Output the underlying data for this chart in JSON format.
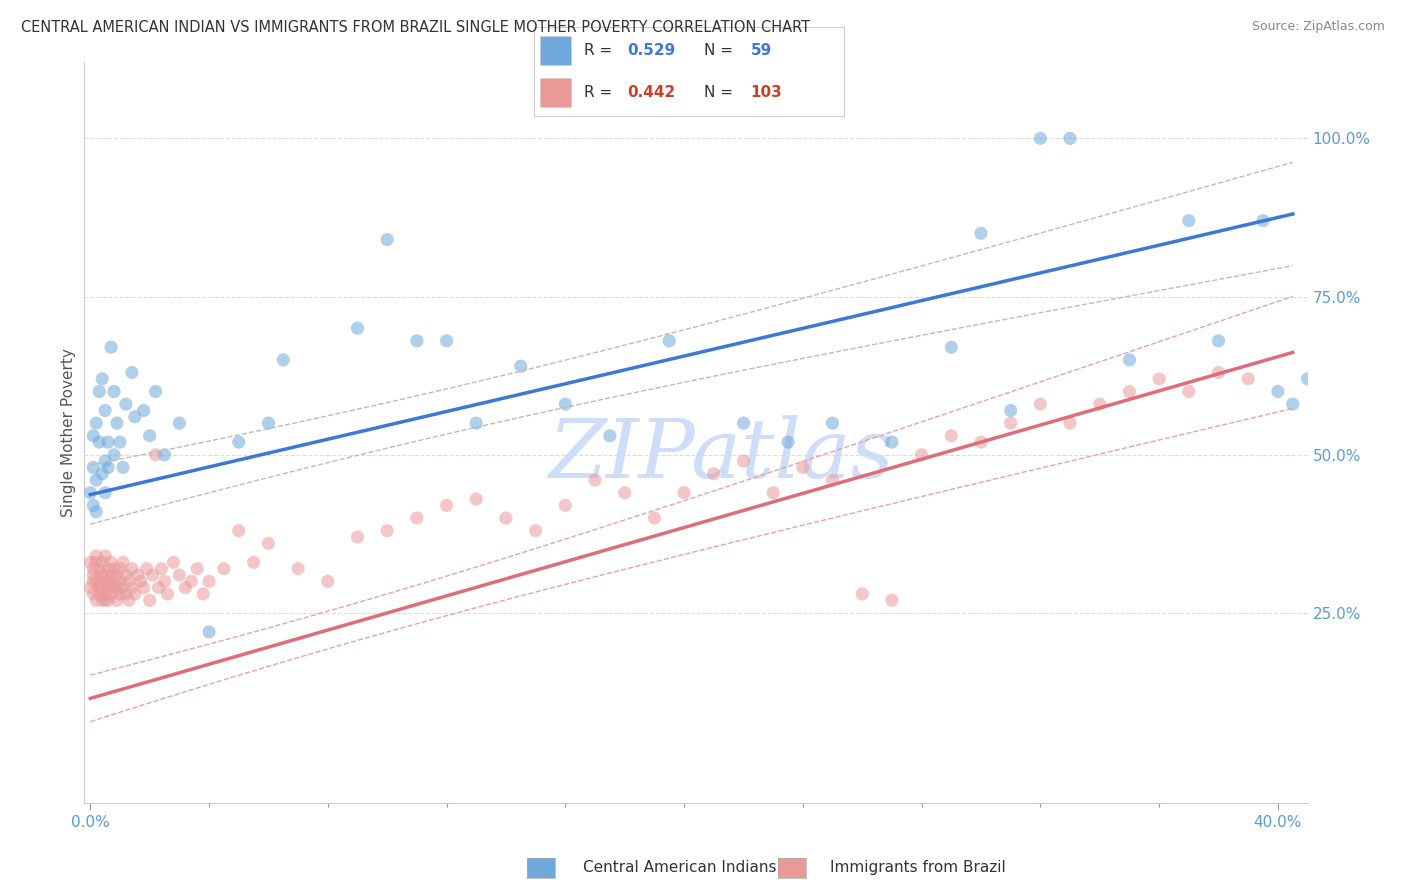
{
  "title": "CENTRAL AMERICAN INDIAN VS IMMIGRANTS FROM BRAZIL SINGLE MOTHER POVERTY CORRELATION CHART",
  "source": "Source: ZipAtlas.com",
  "ylabel": "Single Mother Poverty",
  "xlim": [
    -0.002,
    0.41
  ],
  "ylim": [
    -0.05,
    1.12
  ],
  "xticks": [
    0.0,
    0.4
  ],
  "xtick_labels": [
    "0.0%",
    "40.0%"
  ],
  "xticks_minor": [
    0.04,
    0.08,
    0.12,
    0.16,
    0.2,
    0.24,
    0.28,
    0.32,
    0.36
  ],
  "yticks": [
    0.25,
    0.5,
    0.75,
    1.0
  ],
  "ytick_labels": [
    "25.0%",
    "50.0%",
    "75.0%",
    "100.0%"
  ],
  "blue_R": 0.529,
  "blue_N": 59,
  "pink_R": 0.442,
  "pink_N": 103,
  "blue_color": "#6fa8dc",
  "pink_color": "#ea9999",
  "line_blue": "#3c78d8",
  "line_pink": "#e06c7a",
  "conf_color": "#e8a0a8",
  "legend_label_blue": "Central American Indians",
  "legend_label_pink": "Immigrants from Brazil",
  "watermark": "ZIPatlas",
  "watermark_color": "#c9daf8",
  "blue_x": [
    0.0,
    0.001,
    0.001,
    0.001,
    0.002,
    0.002,
    0.002,
    0.003,
    0.003,
    0.004,
    0.004,
    0.005,
    0.005,
    0.005,
    0.006,
    0.006,
    0.007,
    0.008,
    0.008,
    0.009,
    0.01,
    0.011,
    0.012,
    0.014,
    0.015,
    0.018,
    0.02,
    0.022,
    0.025,
    0.03,
    0.04,
    0.05,
    0.06,
    0.065,
    0.09,
    0.1,
    0.11,
    0.12,
    0.13,
    0.145,
    0.16,
    0.175,
    0.195,
    0.22,
    0.235,
    0.25,
    0.27,
    0.29,
    0.3,
    0.31,
    0.32,
    0.33,
    0.35,
    0.37,
    0.38,
    0.395,
    0.4,
    0.405,
    0.41
  ],
  "blue_y": [
    0.44,
    0.48,
    0.42,
    0.53,
    0.46,
    0.55,
    0.41,
    0.52,
    0.6,
    0.47,
    0.62,
    0.49,
    0.57,
    0.44,
    0.52,
    0.48,
    0.67,
    0.6,
    0.5,
    0.55,
    0.52,
    0.48,
    0.58,
    0.63,
    0.56,
    0.57,
    0.53,
    0.6,
    0.5,
    0.55,
    0.22,
    0.52,
    0.55,
    0.65,
    0.7,
    0.84,
    0.68,
    0.68,
    0.55,
    0.64,
    0.58,
    0.53,
    0.68,
    0.55,
    0.52,
    0.55,
    0.52,
    0.67,
    0.85,
    0.57,
    1.0,
    1.0,
    0.65,
    0.87,
    0.68,
    0.87,
    0.6,
    0.58,
    0.62
  ],
  "pink_x": [
    0.0,
    0.0,
    0.001,
    0.001,
    0.001,
    0.001,
    0.002,
    0.002,
    0.002,
    0.002,
    0.003,
    0.003,
    0.003,
    0.003,
    0.004,
    0.004,
    0.004,
    0.004,
    0.005,
    0.005,
    0.005,
    0.005,
    0.005,
    0.006,
    0.006,
    0.006,
    0.006,
    0.007,
    0.007,
    0.007,
    0.008,
    0.008,
    0.008,
    0.009,
    0.009,
    0.009,
    0.01,
    0.01,
    0.01,
    0.011,
    0.011,
    0.012,
    0.012,
    0.013,
    0.013,
    0.014,
    0.014,
    0.015,
    0.016,
    0.017,
    0.018,
    0.019,
    0.02,
    0.021,
    0.022,
    0.023,
    0.024,
    0.025,
    0.026,
    0.028,
    0.03,
    0.032,
    0.034,
    0.036,
    0.038,
    0.04,
    0.045,
    0.05,
    0.055,
    0.06,
    0.07,
    0.08,
    0.09,
    0.1,
    0.11,
    0.12,
    0.13,
    0.14,
    0.15,
    0.16,
    0.17,
    0.18,
    0.19,
    0.2,
    0.21,
    0.22,
    0.23,
    0.24,
    0.25,
    0.26,
    0.27,
    0.28,
    0.29,
    0.3,
    0.31,
    0.32,
    0.33,
    0.34,
    0.35,
    0.36,
    0.37,
    0.38,
    0.39
  ],
  "pink_y": [
    0.29,
    0.33,
    0.28,
    0.31,
    0.32,
    0.3,
    0.27,
    0.34,
    0.3,
    0.33,
    0.28,
    0.32,
    0.29,
    0.3,
    0.27,
    0.33,
    0.31,
    0.29,
    0.28,
    0.31,
    0.34,
    0.3,
    0.27,
    0.3,
    0.29,
    0.32,
    0.27,
    0.28,
    0.33,
    0.31,
    0.3,
    0.29,
    0.32,
    0.27,
    0.31,
    0.29,
    0.3,
    0.28,
    0.32,
    0.29,
    0.33,
    0.28,
    0.31,
    0.3,
    0.27,
    0.32,
    0.29,
    0.28,
    0.31,
    0.3,
    0.29,
    0.32,
    0.27,
    0.31,
    0.5,
    0.29,
    0.32,
    0.3,
    0.28,
    0.33,
    0.31,
    0.29,
    0.3,
    0.32,
    0.28,
    0.3,
    0.32,
    0.38,
    0.33,
    0.36,
    0.32,
    0.3,
    0.37,
    0.38,
    0.4,
    0.42,
    0.43,
    0.4,
    0.38,
    0.42,
    0.46,
    0.44,
    0.4,
    0.44,
    0.47,
    0.49,
    0.44,
    0.48,
    0.46,
    0.28,
    0.27,
    0.5,
    0.53,
    0.52,
    0.55,
    0.58,
    0.55,
    0.58,
    0.6,
    0.62,
    0.6,
    0.63,
    0.62
  ],
  "blue_line_x0": 0.0,
  "blue_line_y0": 0.437,
  "blue_line_x1": 0.4,
  "blue_line_y1": 0.875,
  "pink_line_x0": 0.0,
  "pink_line_y0": 0.115,
  "pink_line_x1": 0.4,
  "pink_line_y1": 0.655
}
